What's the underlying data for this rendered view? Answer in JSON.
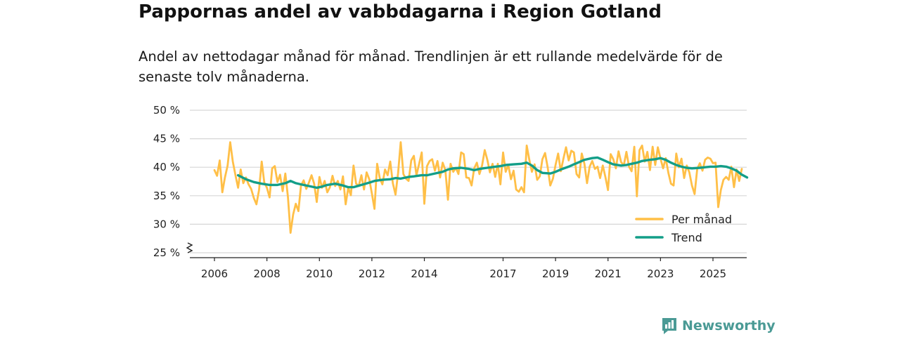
{
  "chart_data": {
    "type": "line",
    "title": "Pappornas andel av vabbdagarna i Region Gotland",
    "subtitle": "Andel av nettodagar månad för månad. Trendlinjen är ett rullande medelvärde för de senaste tolv månaderna.",
    "xlabel": "",
    "ylabel": "",
    "ylim": [
      25,
      50
    ],
    "y_ticks": [
      25,
      30,
      35,
      40,
      45,
      50
    ],
    "y_tick_labels": [
      "25 %",
      "30 %",
      "35 %",
      "40 %",
      "45 %",
      "50 %"
    ],
    "x_ticks": [
      2006,
      2008,
      2010,
      2012,
      2014,
      2017,
      2019,
      2021,
      2023,
      2025
    ],
    "x_tick_labels": [
      "2006",
      "2008",
      "2010",
      "2012",
      "2014",
      "2017",
      "2019",
      "2021",
      "2023",
      "2025"
    ],
    "grid": true,
    "legend_position": "bottom-right",
    "series": [
      {
        "name": "Per månad",
        "color": "#ffbf47",
        "points": [
          [
            2006.0,
            39.5
          ],
          [
            2006.1,
            38.5
          ],
          [
            2006.2,
            41.2
          ],
          [
            2006.3,
            35.6
          ],
          [
            2006.4,
            38.2
          ],
          [
            2006.5,
            40.3
          ],
          [
            2006.6,
            44.4
          ],
          [
            2006.7,
            41.0
          ],
          [
            2006.8,
            38.6
          ],
          [
            2006.9,
            36.4
          ],
          [
            2007.0,
            39.6
          ],
          [
            2007.1,
            37.2
          ],
          [
            2007.2,
            38.2
          ],
          [
            2007.3,
            37.0
          ],
          [
            2007.4,
            36.2
          ],
          [
            2007.5,
            34.6
          ],
          [
            2007.6,
            33.5
          ],
          [
            2007.7,
            36.0
          ],
          [
            2007.8,
            41.0
          ],
          [
            2007.9,
            37.3
          ],
          [
            2008.0,
            36.4
          ],
          [
            2008.1,
            34.7
          ],
          [
            2008.2,
            39.8
          ],
          [
            2008.3,
            40.2
          ],
          [
            2008.4,
            37.4
          ],
          [
            2008.5,
            38.7
          ],
          [
            2008.6,
            35.8
          ],
          [
            2008.7,
            38.9
          ],
          [
            2008.8,
            34.8
          ],
          [
            2008.9,
            28.5
          ],
          [
            2009.0,
            31.7
          ],
          [
            2009.1,
            33.6
          ],
          [
            2009.2,
            32.3
          ],
          [
            2009.3,
            36.8
          ],
          [
            2009.4,
            37.7
          ],
          [
            2009.5,
            36.2
          ],
          [
            2009.6,
            37.3
          ],
          [
            2009.7,
            38.6
          ],
          [
            2009.8,
            37.1
          ],
          [
            2009.9,
            33.9
          ],
          [
            2010.0,
            38.3
          ],
          [
            2010.1,
            36.4
          ],
          [
            2010.2,
            37.6
          ],
          [
            2010.3,
            35.6
          ],
          [
            2010.4,
            36.5
          ],
          [
            2010.5,
            38.5
          ],
          [
            2010.6,
            36.7
          ],
          [
            2010.7,
            37.6
          ],
          [
            2010.8,
            36.1
          ],
          [
            2010.9,
            38.4
          ],
          [
            2011.0,
            33.5
          ],
          [
            2011.1,
            36.4
          ],
          [
            2011.2,
            35.1
          ],
          [
            2011.3,
            40.3
          ],
          [
            2011.4,
            37.1
          ],
          [
            2011.5,
            36.7
          ],
          [
            2011.6,
            38.6
          ],
          [
            2011.7,
            36.1
          ],
          [
            2011.8,
            39.1
          ],
          [
            2011.9,
            37.9
          ],
          [
            2012.0,
            35.4
          ],
          [
            2012.1,
            32.7
          ],
          [
            2012.2,
            40.6
          ],
          [
            2012.3,
            38.1
          ],
          [
            2012.4,
            37.0
          ],
          [
            2012.5,
            39.6
          ],
          [
            2012.6,
            38.6
          ],
          [
            2012.7,
            41.0
          ],
          [
            2012.8,
            37.2
          ],
          [
            2012.9,
            35.2
          ],
          [
            2013.0,
            39.0
          ],
          [
            2013.1,
            44.4
          ],
          [
            2013.2,
            38.8
          ],
          [
            2013.3,
            38.0
          ],
          [
            2013.4,
            37.6
          ],
          [
            2013.5,
            41.2
          ],
          [
            2013.6,
            42.0
          ],
          [
            2013.7,
            38.6
          ],
          [
            2013.8,
            40.6
          ],
          [
            2013.9,
            42.6
          ],
          [
            2014.0,
            33.6
          ],
          [
            2014.1,
            40.2
          ],
          [
            2014.2,
            41.1
          ],
          [
            2014.3,
            41.4
          ],
          [
            2014.4,
            39.4
          ],
          [
            2014.5,
            41.1
          ],
          [
            2014.6,
            38.2
          ],
          [
            2014.7,
            40.8
          ],
          [
            2014.8,
            39.5
          ],
          [
            2014.9,
            34.3
          ],
          [
            2015.0,
            40.6
          ],
          [
            2015.1,
            39.2
          ],
          [
            2015.2,
            39.9
          ],
          [
            2015.3,
            38.8
          ],
          [
            2015.4,
            42.6
          ],
          [
            2015.5,
            42.3
          ],
          [
            2015.6,
            38.2
          ],
          [
            2015.7,
            38.1
          ],
          [
            2015.8,
            36.8
          ],
          [
            2015.9,
            39.8
          ],
          [
            2016.0,
            40.8
          ],
          [
            2016.1,
            38.8
          ],
          [
            2016.2,
            40.3
          ],
          [
            2016.3,
            43.0
          ],
          [
            2016.4,
            41.3
          ],
          [
            2016.5,
            39.1
          ],
          [
            2016.6,
            40.6
          ],
          [
            2016.7,
            38.3
          ],
          [
            2016.8,
            40.6
          ],
          [
            2016.9,
            37.0
          ],
          [
            2017.0,
            42.6
          ],
          [
            2017.1,
            39.2
          ],
          [
            2017.2,
            40.4
          ],
          [
            2017.3,
            37.9
          ],
          [
            2017.4,
            39.4
          ],
          [
            2017.5,
            36.1
          ],
          [
            2017.6,
            35.7
          ],
          [
            2017.7,
            36.5
          ],
          [
            2017.8,
            35.6
          ],
          [
            2017.9,
            43.8
          ],
          [
            2018.0,
            41.3
          ],
          [
            2018.1,
            39.2
          ],
          [
            2018.2,
            40.5
          ],
          [
            2018.3,
            37.8
          ],
          [
            2018.4,
            38.4
          ],
          [
            2018.5,
            41.4
          ],
          [
            2018.6,
            42.5
          ],
          [
            2018.7,
            40.0
          ],
          [
            2018.8,
            36.8
          ],
          [
            2018.9,
            38.0
          ],
          [
            2019.0,
            40.4
          ],
          [
            2019.1,
            42.4
          ],
          [
            2019.2,
            39.3
          ],
          [
            2019.3,
            41.5
          ],
          [
            2019.4,
            43.5
          ],
          [
            2019.5,
            41.2
          ],
          [
            2019.6,
            42.9
          ],
          [
            2019.7,
            42.6
          ],
          [
            2019.8,
            38.8
          ],
          [
            2019.9,
            38.2
          ],
          [
            2020.0,
            42.4
          ],
          [
            2020.1,
            40.6
          ],
          [
            2020.2,
            37.2
          ],
          [
            2020.3,
            40.1
          ],
          [
            2020.4,
            41.1
          ],
          [
            2020.5,
            39.7
          ],
          [
            2020.6,
            40.1
          ],
          [
            2020.7,
            38.1
          ],
          [
            2020.8,
            40.3
          ],
          [
            2020.9,
            38.3
          ],
          [
            2021.0,
            36.0
          ],
          [
            2021.1,
            42.3
          ],
          [
            2021.2,
            41.4
          ],
          [
            2021.3,
            39.8
          ],
          [
            2021.4,
            42.8
          ],
          [
            2021.5,
            40.9
          ],
          [
            2021.6,
            40.3
          ],
          [
            2021.7,
            42.7
          ],
          [
            2021.8,
            40.1
          ],
          [
            2021.9,
            39.3
          ],
          [
            2022.0,
            43.6
          ],
          [
            2022.1,
            34.9
          ],
          [
            2022.2,
            43.0
          ],
          [
            2022.3,
            43.8
          ],
          [
            2022.4,
            41.0
          ],
          [
            2022.5,
            42.7
          ],
          [
            2022.6,
            39.5
          ],
          [
            2022.7,
            43.6
          ],
          [
            2022.8,
            40.4
          ],
          [
            2022.9,
            43.5
          ],
          [
            2023.0,
            41.5
          ],
          [
            2023.1,
            39.8
          ],
          [
            2023.2,
            41.6
          ],
          [
            2023.3,
            39.0
          ],
          [
            2023.4,
            37.1
          ],
          [
            2023.5,
            36.8
          ],
          [
            2023.6,
            42.4
          ],
          [
            2023.7,
            40.0
          ],
          [
            2023.8,
            41.5
          ],
          [
            2023.9,
            38.1
          ],
          [
            2024.0,
            40.3
          ],
          [
            2024.1,
            39.1
          ],
          [
            2024.2,
            36.8
          ],
          [
            2024.3,
            35.3
          ],
          [
            2024.4,
            39.7
          ],
          [
            2024.5,
            40.7
          ],
          [
            2024.6,
            39.4
          ],
          [
            2024.7,
            41.3
          ],
          [
            2024.8,
            41.7
          ],
          [
            2024.9,
            41.5
          ],
          [
            2025.0,
            40.7
          ],
          [
            2025.1,
            40.8
          ],
          [
            2025.2,
            33.0
          ],
          [
            2025.3,
            36.0
          ],
          [
            2025.4,
            37.8
          ],
          [
            2025.5,
            38.3
          ],
          [
            2025.6,
            37.8
          ],
          [
            2025.7,
            40.1
          ],
          [
            2025.8,
            36.5
          ],
          [
            2025.9,
            39.6
          ],
          [
            2026.0,
            37.6
          ],
          [
            2026.1,
            39.7
          ]
        ]
      },
      {
        "name": "Trend",
        "color": "#139e88",
        "points": [
          [
            2006.9,
            38.6
          ],
          [
            2007.2,
            37.9
          ],
          [
            2007.5,
            37.4
          ],
          [
            2007.8,
            37.1
          ],
          [
            2008.1,
            36.9
          ],
          [
            2008.4,
            36.9
          ],
          [
            2008.7,
            37.2
          ],
          [
            2008.9,
            37.6
          ],
          [
            2009.1,
            37.2
          ],
          [
            2009.3,
            37.0
          ],
          [
            2009.6,
            36.7
          ],
          [
            2009.9,
            36.4
          ],
          [
            2010.1,
            36.6
          ],
          [
            2010.3,
            36.9
          ],
          [
            2010.6,
            37.1
          ],
          [
            2010.9,
            36.8
          ],
          [
            2011.1,
            36.5
          ],
          [
            2011.3,
            36.5
          ],
          [
            2011.6,
            36.9
          ],
          [
            2011.9,
            37.3
          ],
          [
            2012.1,
            37.6
          ],
          [
            2012.4,
            37.8
          ],
          [
            2012.7,
            37.9
          ],
          [
            2012.9,
            38.1
          ],
          [
            2013.1,
            38.0
          ],
          [
            2013.4,
            38.3
          ],
          [
            2013.6,
            38.4
          ],
          [
            2013.9,
            38.6
          ],
          [
            2014.1,
            38.6
          ],
          [
            2014.4,
            38.9
          ],
          [
            2014.7,
            39.2
          ],
          [
            2014.9,
            39.6
          ],
          [
            2015.1,
            39.8
          ],
          [
            2015.4,
            39.9
          ],
          [
            2015.7,
            39.7
          ],
          [
            2015.9,
            39.5
          ],
          [
            2016.1,
            39.7
          ],
          [
            2016.4,
            39.9
          ],
          [
            2016.7,
            40.1
          ],
          [
            2016.9,
            40.2
          ],
          [
            2017.1,
            40.4
          ],
          [
            2017.4,
            40.5
          ],
          [
            2017.7,
            40.6
          ],
          [
            2017.9,
            40.8
          ],
          [
            2018.1,
            40.3
          ],
          [
            2018.3,
            39.5
          ],
          [
            2018.5,
            39.0
          ],
          [
            2018.8,
            38.9
          ],
          [
            2019.0,
            39.2
          ],
          [
            2019.2,
            39.6
          ],
          [
            2019.5,
            40.1
          ],
          [
            2019.7,
            40.5
          ],
          [
            2019.9,
            40.9
          ],
          [
            2020.1,
            41.3
          ],
          [
            2020.4,
            41.6
          ],
          [
            2020.6,
            41.7
          ],
          [
            2020.8,
            41.3
          ],
          [
            2021.0,
            40.9
          ],
          [
            2021.2,
            40.5
          ],
          [
            2021.5,
            40.3
          ],
          [
            2021.7,
            40.4
          ],
          [
            2021.9,
            40.6
          ],
          [
            2022.1,
            40.8
          ],
          [
            2022.3,
            41.1
          ],
          [
            2022.6,
            41.3
          ],
          [
            2022.8,
            41.4
          ],
          [
            2023.0,
            41.6
          ],
          [
            2023.2,
            41.3
          ],
          [
            2023.4,
            40.8
          ],
          [
            2023.6,
            40.4
          ],
          [
            2023.8,
            40.1
          ],
          [
            2024.0,
            39.9
          ],
          [
            2024.2,
            39.8
          ],
          [
            2024.5,
            39.9
          ],
          [
            2024.7,
            40.0
          ],
          [
            2024.9,
            40.1
          ],
          [
            2025.1,
            40.1
          ],
          [
            2025.3,
            40.2
          ],
          [
            2025.5,
            40.1
          ],
          [
            2025.7,
            39.8
          ],
          [
            2025.9,
            39.4
          ],
          [
            2026.1,
            38.7
          ],
          [
            2026.3,
            38.2
          ]
        ]
      }
    ]
  },
  "brand": {
    "name": "Newsworthy",
    "color": "#4a9a95"
  }
}
